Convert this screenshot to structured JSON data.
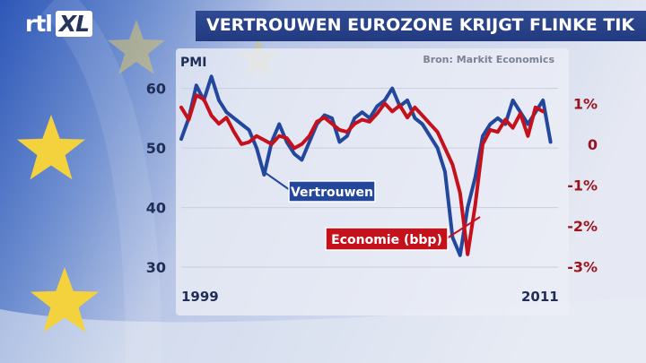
{
  "header": {
    "logo_text": "rtl",
    "logo_badge": "XL",
    "title": "VERTROUWEN EUROZONE KRIJGT FLINKE TIK"
  },
  "colors": {
    "title_bar": "#26418a",
    "series_vertrouwen": "#23479c",
    "series_economie": "#c4111b",
    "left_axis_text": "#1f2d57",
    "right_axis_text": "#9b1520"
  },
  "icons": [
    "eu-flag-star-icon"
  ],
  "chart_data": {
    "type": "line",
    "source": "Bron: Markit Economics",
    "x_labels": [
      "1999",
      "2011"
    ],
    "xlim": [
      1999,
      2011.5
    ],
    "y_left": {
      "label": "PMI",
      "ticks": [
        "60",
        "50",
        "40",
        "30"
      ],
      "ylim": [
        27,
        64
      ]
    },
    "y_right": {
      "ticks": [
        "1%",
        "0",
        "-1%",
        "-2%",
        "-3%"
      ],
      "ylim": [
        -3.45,
        1.95
      ]
    },
    "series": [
      {
        "name": "Vertrouwen",
        "axis": "left",
        "x": [
          1999.0,
          1999.25,
          1999.5,
          1999.75,
          2000.0,
          2000.25,
          2000.5,
          2000.75,
          2001.0,
          2001.25,
          2001.5,
          2001.75,
          2002.0,
          2002.25,
          2002.5,
          2002.75,
          2003.0,
          2003.25,
          2003.5,
          2003.75,
          2004.0,
          2004.25,
          2004.5,
          2004.75,
          2005.0,
          2005.25,
          2005.5,
          2005.75,
          2006.0,
          2006.25,
          2006.5,
          2006.75,
          2007.0,
          2007.25,
          2007.5,
          2007.75,
          2008.0,
          2008.25,
          2008.5,
          2008.75,
          2009.0,
          2009.25,
          2009.5,
          2009.75,
          2010.0,
          2010.25,
          2010.5,
          2010.75,
          2011.0,
          2011.25
        ],
        "y": [
          51.5,
          55,
          60.5,
          58,
          62,
          58,
          56,
          55,
          54,
          53,
          50,
          45.5,
          51,
          54,
          51,
          49,
          48,
          51,
          54,
          55.5,
          55,
          51,
          52,
          55,
          56,
          55,
          57,
          58,
          60,
          57,
          58,
          55,
          54,
          52,
          50,
          46,
          35,
          32,
          40,
          45,
          52,
          54,
          55,
          54,
          58,
          56,
          54,
          56,
          58,
          51
        ]
      },
      {
        "name": "Economie (bbp)",
        "axis": "right",
        "x": [
          1999.0,
          1999.25,
          1999.5,
          1999.75,
          2000.0,
          2000.25,
          2000.5,
          2000.75,
          2001.0,
          2001.25,
          2001.5,
          2001.75,
          2002.0,
          2002.25,
          2002.5,
          2002.75,
          2003.0,
          2003.25,
          2003.5,
          2003.75,
          2004.0,
          2004.25,
          2004.5,
          2004.75,
          2005.0,
          2005.25,
          2005.5,
          2005.75,
          2006.0,
          2006.25,
          2006.5,
          2006.75,
          2007.0,
          2007.25,
          2007.5,
          2007.75,
          2008.0,
          2008.25,
          2008.5,
          2008.75,
          2009.0,
          2009.25,
          2009.5,
          2009.75,
          2010.0,
          2010.25,
          2010.5,
          2010.75,
          2011.0
        ],
        "y": [
          0.9,
          0.6,
          1.2,
          1.1,
          0.7,
          0.5,
          0.65,
          0.3,
          0.0,
          0.05,
          0.2,
          0.1,
          0.0,
          0.2,
          0.15,
          -0.1,
          0.0,
          0.2,
          0.55,
          0.65,
          0.5,
          0.35,
          0.3,
          0.5,
          0.6,
          0.55,
          0.75,
          1.0,
          0.8,
          0.95,
          0.65,
          0.9,
          0.7,
          0.5,
          0.3,
          -0.1,
          -0.5,
          -1.2,
          -2.7,
          -1.5,
          0.0,
          0.35,
          0.3,
          0.6,
          0.4,
          0.75,
          0.2,
          0.9,
          0.8
        ]
      }
    ],
    "annotations": [
      {
        "text": "Vertrouwen",
        "series": "Vertrouwen"
      },
      {
        "text": "Economie (bbp)",
        "series": "Economie (bbp)"
      }
    ]
  }
}
